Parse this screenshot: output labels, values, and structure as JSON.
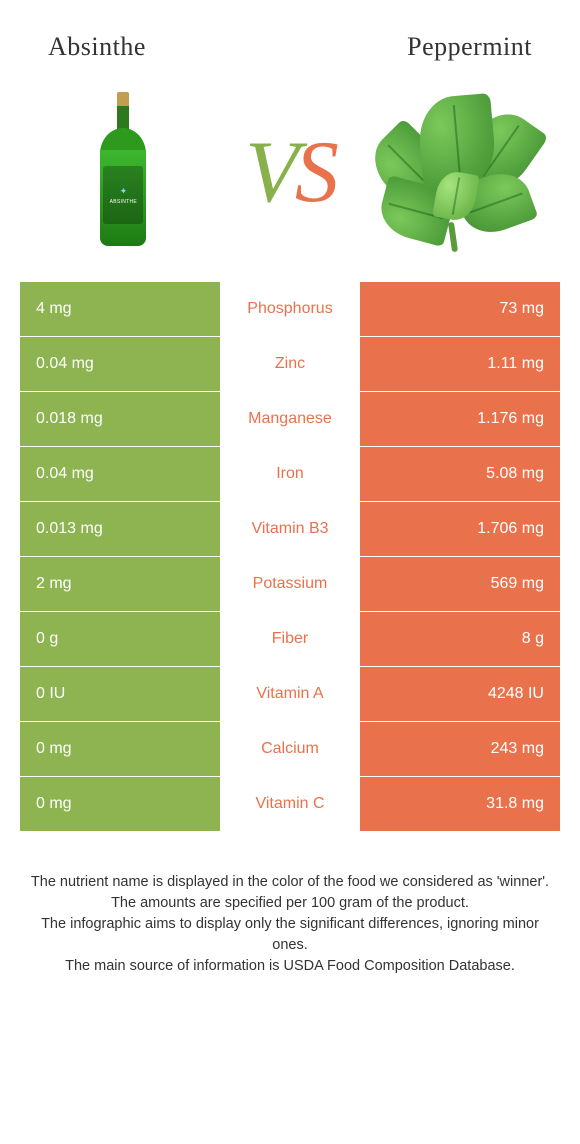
{
  "header": {
    "left_title": "Absinthe",
    "right_title": "Peppermint",
    "vs_v": "V",
    "vs_s": "S"
  },
  "colors": {
    "left": "#8db450",
    "right": "#e9724c",
    "vs_left": "#88b04b",
    "vs_right": "#e9724c"
  },
  "table": {
    "rows": [
      {
        "nutrient": "Phosphorus",
        "left": "4 mg",
        "right": "73 mg",
        "winner": "right"
      },
      {
        "nutrient": "Zinc",
        "left": "0.04 mg",
        "right": "1.11 mg",
        "winner": "right"
      },
      {
        "nutrient": "Manganese",
        "left": "0.018 mg",
        "right": "1.176 mg",
        "winner": "right"
      },
      {
        "nutrient": "Iron",
        "left": "0.04 mg",
        "right": "5.08 mg",
        "winner": "right"
      },
      {
        "nutrient": "Vitamin B3",
        "left": "0.013 mg",
        "right": "1.706 mg",
        "winner": "right"
      },
      {
        "nutrient": "Potassium",
        "left": "2 mg",
        "right": "569 mg",
        "winner": "right"
      },
      {
        "nutrient": "Fiber",
        "left": "0 g",
        "right": "8 g",
        "winner": "right"
      },
      {
        "nutrient": "Vitamin A",
        "left": "0 IU",
        "right": "4248 IU",
        "winner": "right"
      },
      {
        "nutrient": "Calcium",
        "left": "0 mg",
        "right": "243 mg",
        "winner": "right"
      },
      {
        "nutrient": "Vitamin C",
        "left": "0 mg",
        "right": "31.8 mg",
        "winner": "right"
      }
    ]
  },
  "footer": {
    "line1": "The nutrient name is displayed in the color of the food we considered as 'winner'.",
    "line2": "The amounts are specified per 100 gram of the product.",
    "line3": "The infographic aims to display only the significant differences, ignoring minor ones.",
    "line4": "The main source of information is USDA Food Composition Database."
  }
}
